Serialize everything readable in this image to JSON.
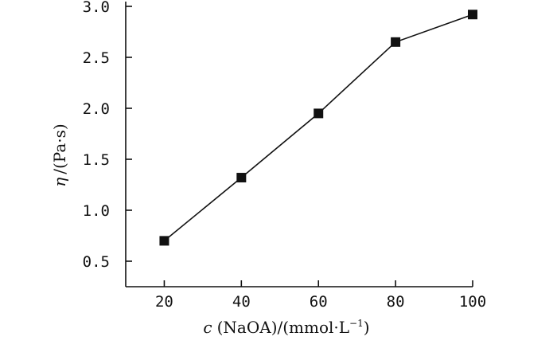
{
  "chart_data": {
    "type": "line",
    "x": [
      20,
      40,
      60,
      80,
      100
    ],
    "series": [
      {
        "values": [
          0.7,
          1.32,
          1.95,
          2.65,
          2.92
        ],
        "marker": "square"
      }
    ],
    "xlim": [
      10,
      100
    ],
    "ylim": [
      0.25,
      3.0
    ],
    "xticks": [
      "20",
      "40",
      "60",
      "80",
      "100"
    ],
    "yticks": [
      "0.5",
      "1.0",
      "1.5",
      "2.0",
      "2.5",
      "3.0"
    ],
    "x_tick_values": [
      20,
      40,
      60,
      80,
      100
    ],
    "y_tick_values": [
      0.5,
      1.0,
      1.5,
      2.0,
      2.5,
      3.0
    ],
    "xlabel": {
      "symbol": "c",
      "text": "(NaOA)/(mmol·L",
      "superscript": "−1",
      "close": ")"
    },
    "ylabel": {
      "symbol": "η",
      "text": "/(Pa·s)"
    },
    "grid": false,
    "legend": "none"
  }
}
